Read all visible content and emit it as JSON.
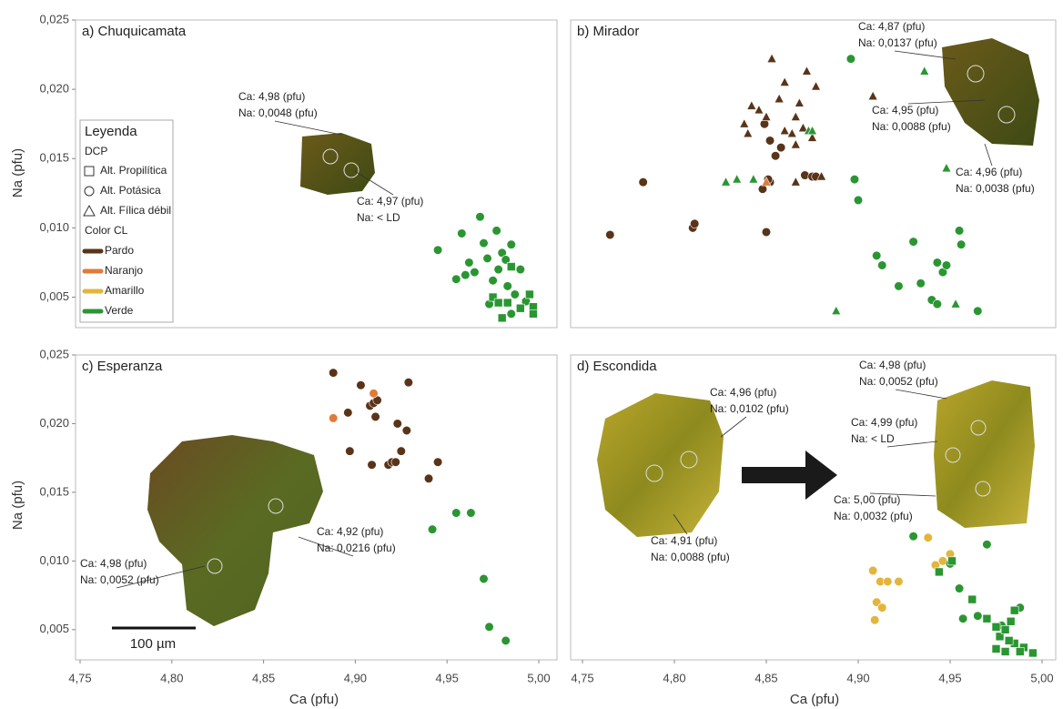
{
  "chart_data": [
    {
      "type": "scatter",
      "title": "a) Chuquicamata",
      "ylabel": "Na (pfu)",
      "xlim": [
        4.75,
        5.0
      ],
      "ylim": [
        0.0028,
        0.025
      ],
      "yticks": [
        {
          "value": 0.025,
          "label": "0,025"
        },
        {
          "value": 0.02,
          "label": "0,020"
        },
        {
          "value": 0.015,
          "label": "0,015"
        },
        {
          "value": 0.01,
          "label": "0,010"
        },
        {
          "value": 0.005,
          "label": "0,005"
        }
      ],
      "annotations": [
        [
          "Ca: 4,98 (pfu)",
          "Na: 0,0048 (pfu)"
        ],
        [
          "Ca: 4,97 (pfu)",
          "Na: < LD"
        ]
      ],
      "series": [
        {
          "color": "#2a9632",
          "marker": "circle",
          "x": [
            4.945,
            4.958,
            4.962,
            4.965,
            4.97,
            4.972,
            4.975,
            4.977,
            4.978,
            4.98,
            4.983,
            4.985,
            4.987,
            4.99,
            4.993,
            4.955,
            4.96,
            4.968,
            4.973,
            4.985,
            4.982
          ],
          "y": [
            0.0084,
            0.0096,
            0.0075,
            0.0068,
            0.0089,
            0.0078,
            0.0062,
            0.0098,
            0.007,
            0.0082,
            0.0058,
            0.0088,
            0.0052,
            0.007,
            0.0047,
            0.0063,
            0.0066,
            0.0108,
            0.0045,
            0.0038,
            0.0077
          ]
        },
        {
          "color": "#2a9632",
          "marker": "square",
          "x": [
            4.975,
            4.978,
            4.983,
            4.985,
            4.99,
            4.997,
            4.997,
            4.98,
            4.995
          ],
          "y": [
            0.005,
            0.0046,
            0.0046,
            0.0072,
            0.0042,
            0.0043,
            0.0038,
            0.0035,
            0.0052
          ]
        }
      ]
    },
    {
      "type": "scatter",
      "title": "b) Mirador",
      "xlim": [
        4.75,
        5.0
      ],
      "ylim": [
        0.0028,
        0.025
      ],
      "annotations": [
        [
          "Ca: 4,87 (pfu)",
          "Na: 0,0137 (pfu)"
        ],
        [
          "Ca: 4,95 (pfu)",
          "Na: 0,0088 (pfu)"
        ],
        [
          "Ca: 4,96 (pfu)",
          "Na: 0,0038 (pfu)"
        ]
      ],
      "series": [
        {
          "color": "#5a3418",
          "marker": "circle",
          "x": [
            4.765,
            4.783,
            4.81,
            4.811,
            4.85,
            4.848,
            4.852,
            4.851,
            4.855,
            4.858,
            4.849,
            4.852,
            4.871,
            4.875,
            4.877
          ],
          "y": [
            0.0095,
            0.0133,
            0.01,
            0.0103,
            0.0097,
            0.0128,
            0.0133,
            0.0135,
            0.0152,
            0.0158,
            0.0175,
            0.0163,
            0.0138,
            0.0137,
            0.0137
          ]
        },
        {
          "color": "#5a3418",
          "marker": "triangle",
          "x": [
            4.838,
            4.842,
            4.84,
            4.846,
            4.85,
            4.853,
            4.857,
            4.86,
            4.86,
            4.864,
            4.866,
            4.868,
            4.87,
            4.875,
            4.877,
            4.872,
            4.866,
            4.88,
            4.908,
            4.866
          ],
          "y": [
            0.0175,
            0.0188,
            0.0168,
            0.0185,
            0.018,
            0.0222,
            0.0193,
            0.0205,
            0.017,
            0.0168,
            0.018,
            0.019,
            0.0172,
            0.0165,
            0.0202,
            0.0213,
            0.016,
            0.0137,
            0.0195,
            0.0133
          ]
        },
        {
          "color": "#e07b39",
          "marker": "triangle",
          "x": [
            4.85
          ],
          "y": [
            0.0133
          ]
        },
        {
          "color": "#2a9632",
          "marker": "triangle",
          "x": [
            4.828,
            4.834,
            4.843,
            4.873,
            4.875,
            4.936,
            4.948,
            4.888,
            4.953
          ],
          "y": [
            0.0133,
            0.0135,
            0.0135,
            0.017,
            0.017,
            0.0213,
            0.0143,
            0.004,
            0.0045
          ]
        },
        {
          "color": "#2a9632",
          "marker": "circle",
          "x": [
            4.896,
            4.898,
            4.9,
            4.91,
            4.913,
            4.922,
            4.93,
            4.934,
            4.94,
            4.943,
            4.943,
            4.946,
            4.948,
            4.955,
            4.956,
            4.965
          ],
          "y": [
            0.0222,
            0.0135,
            0.012,
            0.008,
            0.0073,
            0.0058,
            0.009,
            0.006,
            0.0048,
            0.0045,
            0.0075,
            0.0068,
            0.0073,
            0.0098,
            0.0088,
            0.004
          ]
        }
      ]
    },
    {
      "type": "scatter",
      "title": "c) Esperanza",
      "ylabel": "Na (pfu)",
      "xlabel": "Ca (pfu)",
      "scale_bar": "100 µm",
      "xlim": [
        4.75,
        5.0
      ],
      "ylim": [
        0.0028,
        0.025
      ],
      "xticks": [
        {
          "value": 4.75,
          "label": "4,75"
        },
        {
          "value": 4.8,
          "label": "4,80"
        },
        {
          "value": 4.85,
          "label": "4,85"
        },
        {
          "value": 4.9,
          "label": "4,90"
        },
        {
          "value": 4.95,
          "label": "4,95"
        },
        {
          "value": 5.0,
          "label": "5,00"
        }
      ],
      "yticks": [
        {
          "value": 0.025,
          "label": "0,025"
        },
        {
          "value": 0.02,
          "label": "0,020"
        },
        {
          "value": 0.015,
          "label": "0,015"
        },
        {
          "value": 0.01,
          "label": "0,010"
        },
        {
          "value": 0.005,
          "label": "0,005"
        }
      ],
      "annotations": [
        [
          "Ca: 4,92 (pfu)",
          "Na: 0,0216 (pfu)"
        ],
        [
          "Ca: 4,98 (pfu)",
          "Na: 0,0052 (pfu)"
        ]
      ],
      "series": [
        {
          "color": "#5a3418",
          "marker": "circle",
          "x": [
            4.888,
            4.897,
            4.896,
            4.903,
            4.908,
            4.91,
            4.909,
            4.912,
            4.918,
            4.92,
            4.922,
            4.923,
            4.925,
            4.928,
            4.929,
            4.94,
            4.945,
            4.911
          ],
          "y": [
            0.0237,
            0.018,
            0.0208,
            0.0228,
            0.0213,
            0.0215,
            0.017,
            0.0217,
            0.017,
            0.0172,
            0.0172,
            0.02,
            0.018,
            0.0195,
            0.023,
            0.016,
            0.0172,
            0.0205
          ]
        },
        {
          "color": "#e07b39",
          "marker": "circle",
          "x": [
            4.888,
            4.91
          ],
          "y": [
            0.0204,
            0.0222
          ]
        },
        {
          "color": "#2a9632",
          "marker": "circle",
          "x": [
            4.942,
            4.955,
            4.963,
            4.97,
            4.973,
            4.982
          ],
          "y": [
            0.0123,
            0.0135,
            0.0135,
            0.0087,
            0.0052,
            0.0042
          ]
        }
      ]
    },
    {
      "type": "scatter",
      "title": "d) Escondida",
      "xlabel": "Ca (pfu)",
      "xlim": [
        4.75,
        5.0
      ],
      "ylim": [
        0.0028,
        0.025
      ],
      "xticks": [
        {
          "value": 4.75,
          "label": "4,75"
        },
        {
          "value": 4.8,
          "label": "4,80"
        },
        {
          "value": 4.85,
          "label": "4,85"
        },
        {
          "value": 4.9,
          "label": "4,90"
        },
        {
          "value": 4.95,
          "label": "4,95"
        },
        {
          "value": 5.0,
          "label": "5,00"
        }
      ],
      "annotations": [
        [
          "Ca: 4,96 (pfu)",
          "Na: 0,0102 (pfu)"
        ],
        [
          "Ca: 4,91 (pfu)",
          "Na: 0,0088 (pfu)"
        ],
        [
          "Ca: 4,98 (pfu)",
          "Na: 0,0052 (pfu)"
        ],
        [
          "Ca: 4,99 (pfu)",
          "Na: < LD"
        ],
        [
          "Ca: 5,00 (pfu)",
          "Na: 0,0032 (pfu)"
        ]
      ],
      "series": [
        {
          "color": "#e3b53c",
          "marker": "circle",
          "x": [
            4.908,
            4.91,
            4.913,
            4.912,
            4.916,
            4.922,
            4.909,
            4.938,
            4.942,
            4.946,
            4.95
          ],
          "y": [
            0.0093,
            0.007,
            0.0066,
            0.0085,
            0.0085,
            0.0085,
            0.0057,
            0.0117,
            0.0097,
            0.01,
            0.0105
          ]
        },
        {
          "color": "#2a9632",
          "marker": "circle",
          "x": [
            4.93,
            4.95,
            4.955,
            4.957,
            4.965,
            4.97,
            4.988,
            4.978
          ],
          "y": [
            0.0118,
            0.0098,
            0.008,
            0.0058,
            0.006,
            0.0112,
            0.0066,
            0.0053
          ]
        },
        {
          "color": "#2a9632",
          "marker": "square",
          "x": [
            4.944,
            4.951,
            4.962,
            4.97,
            4.975,
            4.977,
            4.98,
            4.983,
            4.985,
            4.99,
            4.975,
            4.98,
            4.982,
            4.988,
            4.995,
            4.985
          ],
          "y": [
            0.0092,
            0.01,
            0.0072,
            0.0058,
            0.0052,
            0.0045,
            0.005,
            0.0056,
            0.004,
            0.0037,
            0.0036,
            0.0034,
            0.0042,
            0.0034,
            0.0033,
            0.0064
          ]
        }
      ]
    }
  ],
  "legend": {
    "title": "Leyenda",
    "marker_title": "DCP",
    "markers": [
      {
        "marker": "square",
        "label": "Alt. Propilítica"
      },
      {
        "marker": "circle",
        "label": "Alt. Potásica"
      },
      {
        "marker": "triangle",
        "label": "Alt. Fílica débil"
      }
    ],
    "color_title": "Color CL",
    "colors": [
      {
        "color": "#5a3418",
        "label": "Pardo"
      },
      {
        "color": "#e07b39",
        "label": "Naranjo"
      },
      {
        "color": "#e3b53c",
        "label": "Amarillo"
      },
      {
        "color": "#2a9632",
        "label": "Verde"
      }
    ]
  }
}
